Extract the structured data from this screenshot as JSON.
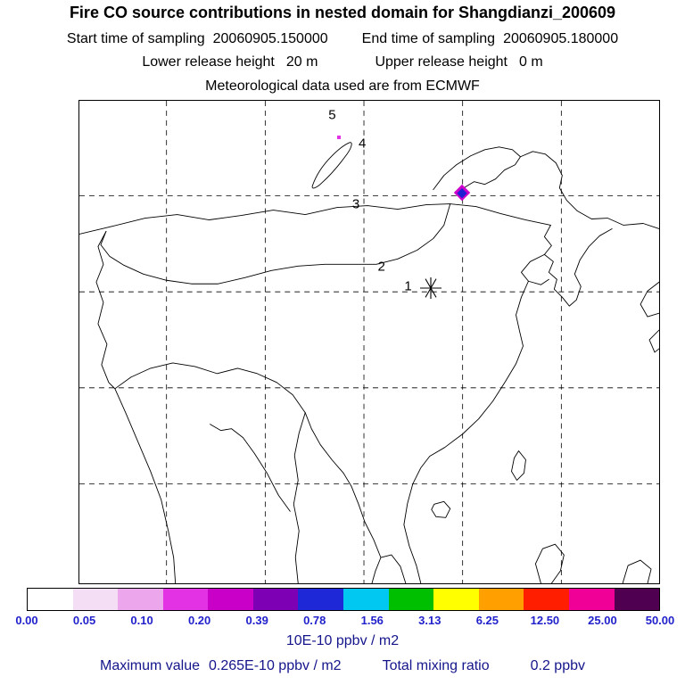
{
  "header": {
    "title": "Fire CO source contributions in nested domain for Shangdianzi_200609",
    "sampling": {
      "start_label": "Start time of sampling",
      "start_value": "20060905.150000",
      "end_label": "End time of sampling",
      "end_value": "20060905.180000"
    },
    "release": {
      "lower_label": "Lower release height",
      "lower_value": "20 m",
      "upper_label": "Upper release height",
      "upper_value": "0 m"
    },
    "meteo_note": "Meteorological data used are from ECMWF"
  },
  "footer": {
    "units": "10E-10 ppbv / m2",
    "max_label": "Maximum value",
    "max_value": "0.265E-10 ppbv / m2",
    "ratio_label": "Total mixing ratio",
    "ratio_value": "0.2 ppbv"
  },
  "chart_data": {
    "type": "heatmap",
    "title": "Fire CO source contributions in nested domain for Shangdianzi_200609",
    "receptor_station": "Shangdianzi_200609",
    "sampling_start": "20060905.150000",
    "sampling_end": "20060905.180000",
    "lower_release_height": "20 m",
    "upper_release_height": "0 m",
    "meteorology": "ECMWF",
    "units": "10E-10 ppbv / m2",
    "maximum_value": "0.265E-10 ppbv / m2",
    "total_mixing_ratio": "0.2 ppbv",
    "grid": "dashed",
    "colorbar": {
      "position": "bottom",
      "labels": [
        "0.00",
        "0.05",
        "0.10",
        "0.20",
        "0.39",
        "0.78",
        "1.56",
        "3.13",
        "6.25",
        "12.50",
        "25.00",
        "50.00"
      ],
      "colors": [
        "#ffffff",
        "#f4def6",
        "#eba6ec",
        "#e332e3",
        "#c800c8",
        "#7d00b4",
        "#1e28d7",
        "#00c8f0",
        "#00be00",
        "#ffff00",
        "#ffa000",
        "#ff1e00",
        "#f00096",
        "#500050"
      ],
      "label_color": "#2222cc"
    },
    "trajectory_points": [
      {
        "label": "1",
        "x_pct": 56.7,
        "y_pct": 38.5
      },
      {
        "label": "2",
        "x_pct": 52.1,
        "y_pct": 34.3
      },
      {
        "label": "3",
        "x_pct": 47.7,
        "y_pct": 21.4
      },
      {
        "label": "4",
        "x_pct": 48.8,
        "y_pct": 8.8
      },
      {
        "label": "5",
        "x_pct": 43.6,
        "y_pct": 2.9
      }
    ],
    "station_marker": {
      "symbol": "asterisk",
      "x_pct": 60.6,
      "y_pct": 38.9
    },
    "plume": {
      "x_pct": 66.0,
      "y_pct": 19.0,
      "outer_color": "#cc00cc",
      "inner_color": "#2020d2"
    },
    "small_dot": {
      "x_pct": 44.8,
      "y_pct": 7.6,
      "color": "#e332e3"
    }
  }
}
